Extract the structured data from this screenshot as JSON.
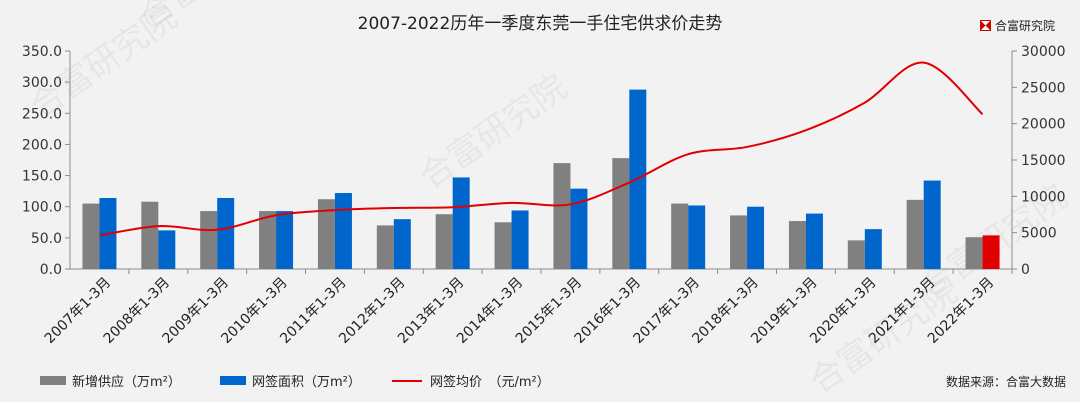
{
  "brand": {
    "name": "合富研究院",
    "source": "数据来源：合富大数据"
  },
  "colors": {
    "supply": "#808080",
    "signed": "#0066cc",
    "highlight": "#e00000",
    "price": "#e00000"
  },
  "chart_data": {
    "type": "bar",
    "title": "2007-2022历年一季度东莞一手住宅供求价走势",
    "categories": [
      "2007年1-3月",
      "2008年1-3月",
      "2009年1-3月",
      "2010年1-3月",
      "2011年1-3月",
      "2012年1-3月",
      "2013年1-3月",
      "2014年1-3月",
      "2015年1-3月",
      "2016年1-3月",
      "2017年1-3月",
      "2018年1-3月",
      "2019年1-3月",
      "2020年1-3月",
      "2021年1-3月",
      "2022年1-3月"
    ],
    "series": [
      {
        "name": "新增供应（万m²）",
        "type": "bar",
        "axis": "left",
        "values": [
          105,
          108,
          93,
          93,
          112,
          70,
          88,
          75,
          170,
          178,
          105,
          86,
          77,
          46,
          111,
          51
        ]
      },
      {
        "name": "网签面积（万m²）",
        "type": "bar",
        "axis": "left",
        "values": [
          114,
          62,
          114,
          93,
          122,
          80,
          147,
          94,
          129,
          288,
          102,
          100,
          89,
          64,
          142,
          54
        ]
      },
      {
        "name": "网签均价　（元/m²）",
        "type": "line",
        "axis": "right",
        "values": [
          4600,
          5900,
          5400,
          7400,
          8100,
          8400,
          8500,
          9100,
          8900,
          11900,
          15800,
          16800,
          19100,
          22900,
          28400,
          21300
        ]
      }
    ],
    "y_left": {
      "min": 0,
      "max": 350,
      "step": 50,
      "ticks": [
        "0.0",
        "50.0",
        "100.0",
        "150.0",
        "200.0",
        "250.0",
        "300.0",
        "350.0"
      ]
    },
    "y_right": {
      "min": 0,
      "max": 30000,
      "step": 5000,
      "ticks": [
        "0",
        "5000",
        "10000",
        "15000",
        "20000",
        "25000",
        "30000"
      ]
    },
    "grid": false,
    "legend_position": "bottom-left"
  }
}
